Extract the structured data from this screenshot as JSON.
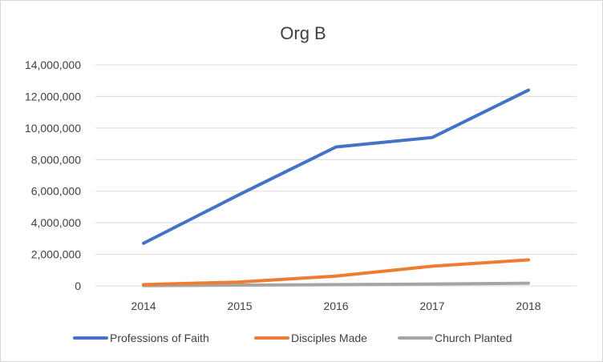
{
  "chart_data": {
    "type": "line",
    "title": "Org B",
    "xlabel": "",
    "ylabel": "",
    "categories": [
      "2014",
      "2015",
      "2016",
      "2017",
      "2018"
    ],
    "ylim": [
      0,
      14000000
    ],
    "yticks": [
      0,
      2000000,
      4000000,
      6000000,
      8000000,
      10000000,
      12000000,
      14000000
    ],
    "ytick_labels": [
      "0",
      "2,000,000",
      "4,000,000",
      "6,000,000",
      "8,000,000",
      "10,000,000",
      "12,000,000",
      "14,000,000"
    ],
    "grid": true,
    "legend_position": "bottom",
    "series": [
      {
        "name": "Professions of Faith",
        "color": "#4472c4",
        "values": [
          2700000,
          5800000,
          8800000,
          9400000,
          12400000
        ]
      },
      {
        "name": "Disciples Made",
        "color": "#ed7d31",
        "values": [
          80000,
          250000,
          620000,
          1250000,
          1650000
        ]
      },
      {
        "name": "Church Planted",
        "color": "#a5a5a5",
        "values": [
          20000,
          50000,
          80000,
          120000,
          170000
        ]
      }
    ]
  }
}
